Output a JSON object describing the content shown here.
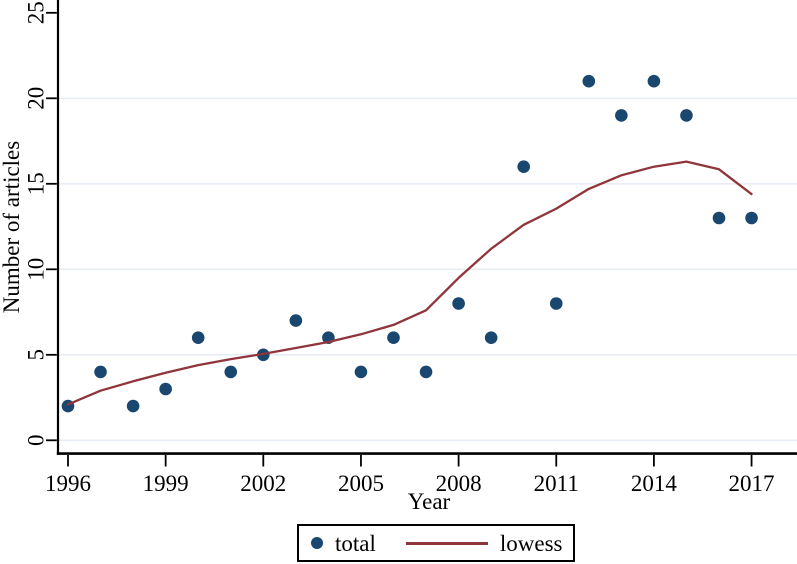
{
  "chart_data": {
    "type": "scatter",
    "title": "",
    "xlabel": "Year",
    "ylabel": "Number of articles",
    "x": [
      1996,
      1997,
      1998,
      1999,
      2000,
      2001,
      2002,
      2003,
      2004,
      2005,
      2006,
      2007,
      2008,
      2009,
      2010,
      2011,
      2012,
      2013,
      2014,
      2015,
      2016,
      2017
    ],
    "series": [
      {
        "name": "total",
        "type": "scatter",
        "color": "#1a476f",
        "values": [
          2,
          4,
          2,
          3,
          6,
          4,
          5,
          7,
          6,
          4,
          6,
          4,
          8,
          6,
          16,
          8,
          21,
          19,
          21,
          19,
          13,
          13
        ]
      },
      {
        "name": "lowess",
        "type": "line",
        "color": "#90353b",
        "values": [
          2.1,
          2.9,
          3.45,
          3.95,
          4.4,
          4.75,
          5.05,
          5.4,
          5.75,
          6.2,
          6.75,
          7.6,
          9.5,
          11.2,
          12.6,
          13.55,
          14.7,
          15.5,
          16.0,
          16.3,
          15.85,
          14.4
        ]
      }
    ],
    "xticks": [
      1996,
      1999,
      2002,
      2005,
      2008,
      2011,
      2014,
      2017
    ],
    "yticks": [
      0,
      5,
      10,
      15,
      20,
      25
    ],
    "grid_yticks": [
      0,
      5,
      10,
      15,
      20
    ],
    "xlim": [
      1995.7,
      2018.4
    ],
    "ylim": [
      0,
      25
    ],
    "grid": "horizontal",
    "legend_position": "bottom-center",
    "colors": {
      "background": "#ffffff",
      "gridline": "#e7edf3",
      "axis": "#000000",
      "text": "#000000"
    },
    "legend": {
      "total_label": "total",
      "lowess_label": "lowess"
    }
  }
}
